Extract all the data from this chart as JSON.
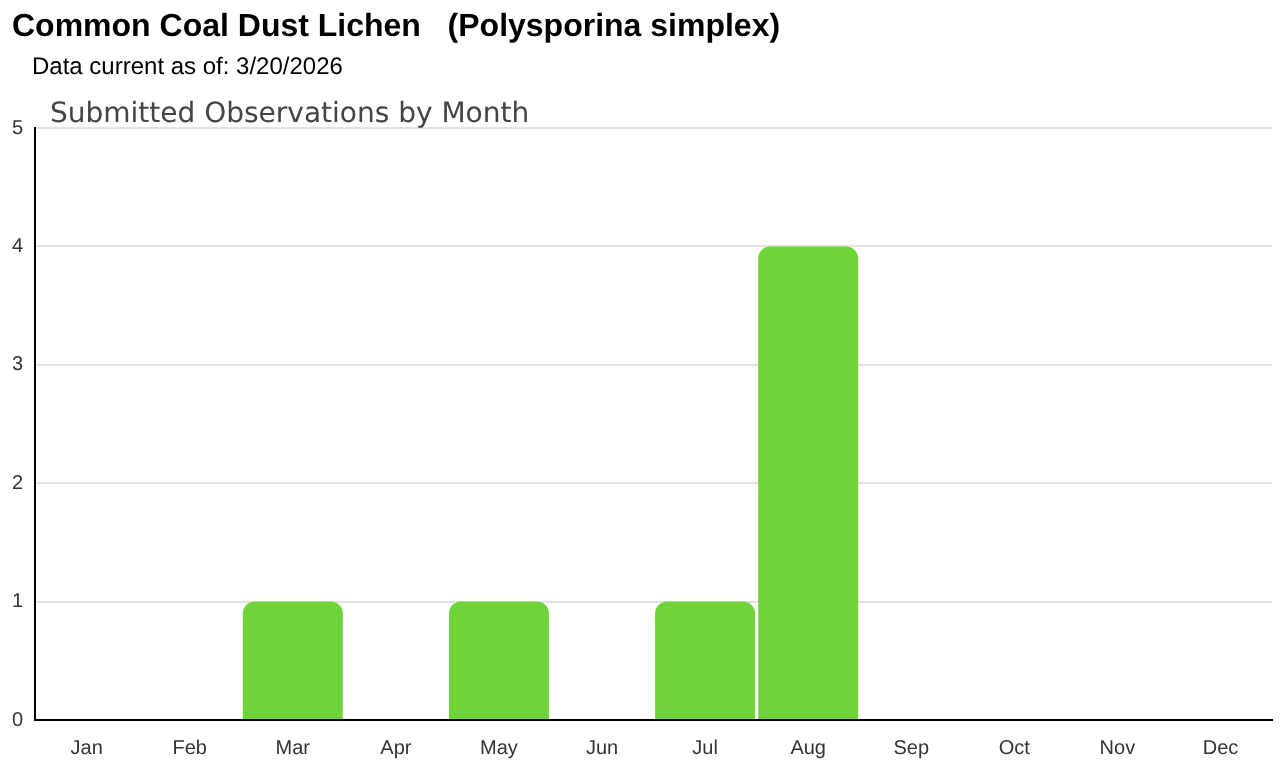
{
  "chart_data": {
    "type": "bar",
    "title": "Common Coal Dust Lichen   (Polysporina simplex)",
    "subtitle": "Data current as of: 3/20/2026",
    "annotations": [
      "Submitted Observations by Month"
    ],
    "categories": [
      "Jan",
      "Feb",
      "Mar",
      "Apr",
      "May",
      "Jun",
      "Jul",
      "Aug",
      "Sep",
      "Oct",
      "Nov",
      "Dec"
    ],
    "values": [
      0,
      0,
      1,
      0,
      1,
      0,
      1,
      4,
      0,
      0,
      0,
      0
    ],
    "color": "#6fd43a",
    "ylim": [
      0,
      5
    ],
    "yticks": [
      0,
      1,
      2,
      3,
      4,
      5
    ],
    "grid": "y",
    "legend": false
  }
}
